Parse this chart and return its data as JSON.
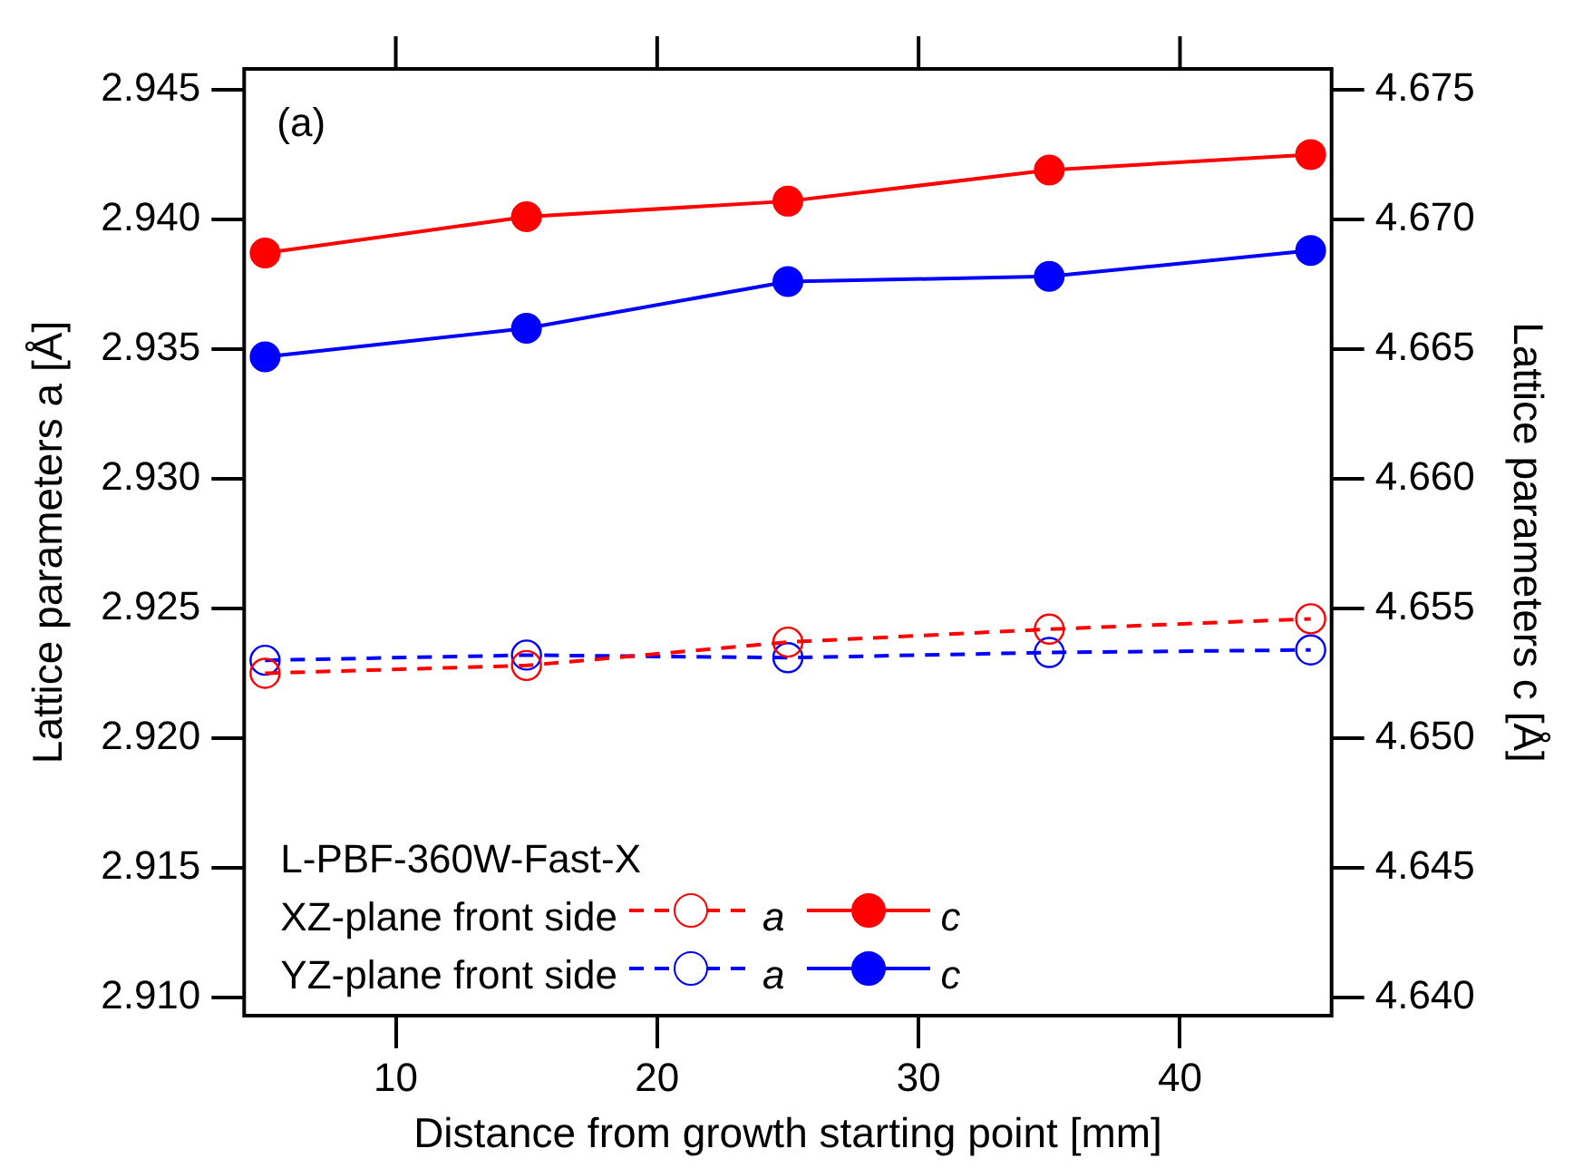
{
  "chart_data": {
    "type": "line",
    "xlabel": "Distance from growth starting point [mm]",
    "ylabel": "Lattice parameters a [Å]",
    "y2label": "Lattice parameters c [Å]",
    "legend_title": "L-PBF-360W-Fast-X",
    "annotations": [
      "(a)",
      "XZ-plane front side",
      "YZ-plane front side"
    ],
    "x": [
      5,
      15,
      25,
      35,
      45
    ],
    "series": [
      {
        "name": "a",
        "color": "#ff0000",
        "axis": "y",
        "line_style": "dashed",
        "values": [
          2.9225,
          2.9228,
          2.9237,
          2.9242,
          2.9246
        ]
      },
      {
        "name": "c",
        "color": "#ff0000",
        "axis": "y2",
        "line_style": "solid",
        "values": [
          4.6687,
          4.6701,
          4.6707,
          4.6719,
          4.6725
        ]
      },
      {
        "name": "a",
        "color": "#0000ff",
        "axis": "y",
        "line_style": "dashed",
        "values": [
          2.923,
          2.9232,
          2.9231,
          2.9233,
          2.9234
        ]
      },
      {
        "name": "c",
        "color": "#0000ff",
        "axis": "y2",
        "line_style": "solid",
        "values": [
          4.6647,
          4.6658,
          4.6676,
          4.6678,
          4.6688
        ]
      }
    ],
    "xlim": [
      4.2,
      45.8
    ],
    "xticks": [
      10,
      20,
      30,
      40
    ],
    "ylim": [
      2.9093,
      2.9458
    ],
    "yticks": [
      {
        "value": 2.91,
        "label": "2.910"
      },
      2.915,
      {
        "value": 2.92,
        "label": "2.920"
      },
      2.925,
      {
        "value": 2.93,
        "label": "2.930"
      },
      2.935,
      {
        "value": 2.94,
        "label": "2.940"
      },
      2.945
    ],
    "y2lim": [
      4.6393,
      4.6758
    ],
    "y2ticks": [
      {
        "value": 4.64,
        "label": "4.640"
      },
      4.645,
      {
        "value": 4.65,
        "label": "4.650"
      },
      4.655,
      {
        "value": 4.66,
        "label": "4.660"
      },
      4.665,
      {
        "value": 4.67,
        "label": "4.670"
      },
      4.675
    ],
    "marker": "circle",
    "legend": "bottom left"
  }
}
